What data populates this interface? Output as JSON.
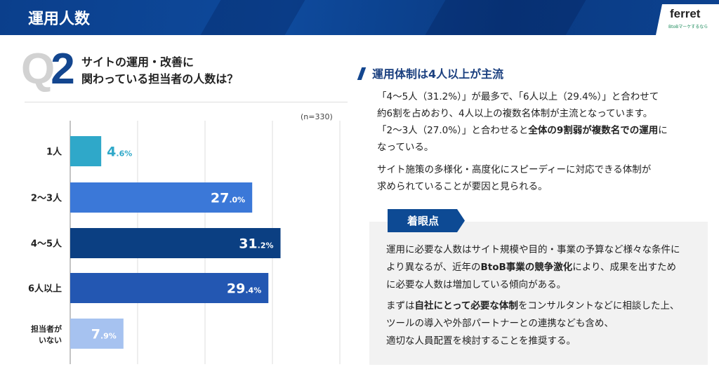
{
  "header": {
    "title": "運用人数",
    "logo": "ferret",
    "logo_tagline": "BtoBマーケするなら"
  },
  "question": {
    "number_q": "Q",
    "number_n": "2",
    "line1": "サイトの運用・改善に",
    "line2": "関わっている担当者の人数は？"
  },
  "chart_data": {
    "type": "bar",
    "orientation": "horizontal",
    "note": "(n=330)",
    "categories": [
      "1人",
      "2〜3人",
      "4〜5人",
      "6人以上",
      "担当者が いない"
    ],
    "category_lines": [
      [
        "1人"
      ],
      [
        "2〜3人"
      ],
      [
        "4〜5人"
      ],
      [
        "6人以上"
      ],
      [
        "担当者が",
        "いない"
      ]
    ],
    "values": [
      4.6,
      27.0,
      31.2,
      29.4,
      7.9
    ],
    "label_int": [
      "4",
      "27",
      "31",
      "29",
      "7"
    ],
    "label_dec": [
      ".6%",
      ".0%",
      ".2%",
      ".4%",
      ".9%"
    ],
    "colors": [
      "#2fa8c9",
      "#3b78d8",
      "#0b3f82",
      "#2357b2",
      "#a6c2f0"
    ],
    "xlim": [
      0,
      40
    ],
    "grid": true,
    "unit": "%"
  },
  "summary": {
    "heading": "運用体制は4人以上が主流",
    "p1": [
      "「4〜5人（31.2%）」が最多で、「6人以上（29.4%）」と合わせて",
      "約6割を占めおり、4人以上の複数名体制が主流となっています。"
    ],
    "p1c_a": "「2〜3人（27.0%）」と合わせると",
    "p1c_b": "全体の9割弱が複数名での運用",
    "p1c_c": "に",
    "p1d": "なっている。",
    "p2": [
      "サイト施策の多様化・高度化にスピーディーに対応できる体制が",
      "求められていることが要因と見られる。"
    ]
  },
  "point": {
    "tab": "着眼点",
    "l1": "運用に必要な人数はサイト規模や目的・事業の予算など様々な条件に",
    "l2a": "より異なるが、近年の",
    "l2b": "BtoB事業の競争激化",
    "l2c": "により、成果を出すため",
    "l3": "に必要な人数は増加している傾向がある。",
    "l4a": "まずは",
    "l4b": "自社にとって必要な体制",
    "l4c": "をコンサルタントなどに相談した上、",
    "l5": "ツールの導入や外部パートナーとの連携なども含め、",
    "l6": "適切な人員配置を検討することを推奨する。"
  }
}
